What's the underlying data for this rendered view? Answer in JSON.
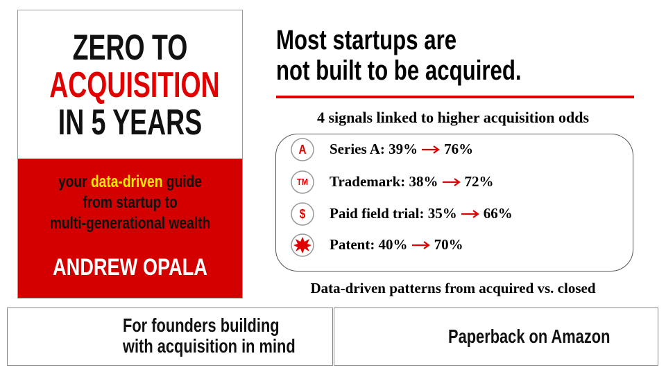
{
  "book": {
    "title_lines": [
      "ZERO TO",
      "ACQUISITION",
      "IN 5 YEARS"
    ],
    "subtitle": {
      "line1": [
        "your",
        "data-driven",
        "guide"
      ],
      "line2": "from startup to",
      "line3": "multi-generational wealth"
    },
    "author": "ANDREW OPALA"
  },
  "headline": [
    "Most startups are",
    "not built to be acquired."
  ],
  "signals": {
    "heading": "4 signals linked to higher acquisition odds",
    "items": [
      {
        "icon": "A",
        "label": "Series A: 39%",
        "after": "76%"
      },
      {
        "icon": "TM",
        "label": "Trademark: 38%",
        "after": "72%"
      },
      {
        "icon": "$",
        "label": "Paid field trial: 35%",
        "after": "66%"
      },
      {
        "icon": null,
        "label": "Patent: 40%",
        "after": "70%"
      }
    ],
    "note": "Data-driven patterns from acquired vs. closed"
  },
  "cards": [
    {
      "lines": [
        "For founders building",
        "with acquisition in mind"
      ]
    },
    {
      "lines": [
        "Paperback on Amazon"
      ]
    }
  ]
}
